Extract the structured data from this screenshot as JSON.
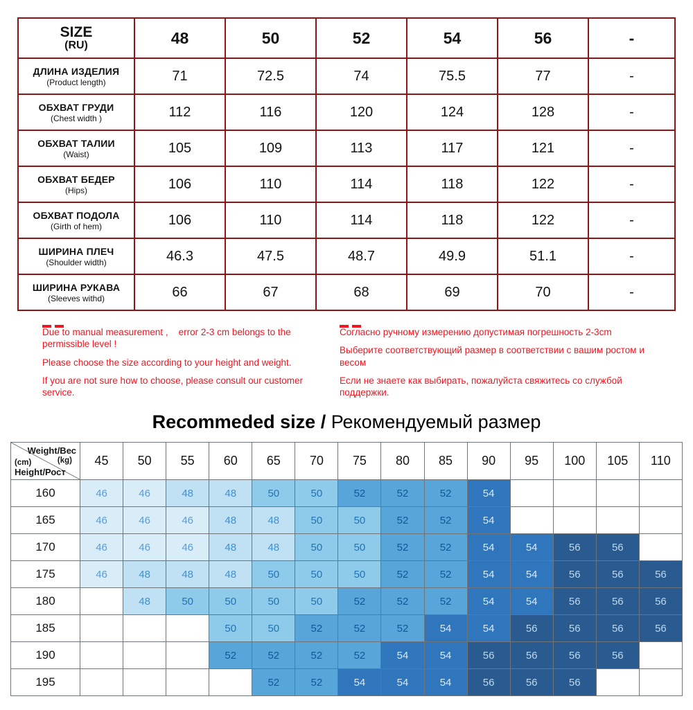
{
  "colors": {
    "table1_border": "#8c1515",
    "note_red": "#f2151f",
    "table2_border": "#6f7479"
  },
  "chart_data": [
    {
      "type": "table",
      "name": "size-measurements",
      "corner_line1": "SIZE",
      "corner_line2": "(RU)",
      "columns": [
        "48",
        "50",
        "52",
        "54",
        "56",
        "-"
      ],
      "rows": [
        {
          "label_ru": "ДЛИНА ИЗДЕЛИЯ",
          "label_en": "(Product length)",
          "values": [
            "71",
            "72.5",
            "74",
            "75.5",
            "77",
            "-"
          ]
        },
        {
          "label_ru": "ОБХВАТ ГРУДИ",
          "label_en": "(Chest width )",
          "values": [
            "112",
            "116",
            "120",
            "124",
            "128",
            "-"
          ]
        },
        {
          "label_ru": "ОБХВАТ ТАЛИИ",
          "label_en": "(Waist)",
          "values": [
            "105",
            "109",
            "113",
            "117",
            "121",
            "-"
          ]
        },
        {
          "label_ru": "ОБХВАТ БЕДЕР",
          "label_en": "(Hips)",
          "values": [
            "106",
            "110",
            "114",
            "118",
            "122",
            "-"
          ]
        },
        {
          "label_ru": "ОБХВАТ ПОДОЛА",
          "label_en": "(Girth of hem)",
          "values": [
            "106",
            "110",
            "114",
            "118",
            "122",
            "-"
          ]
        },
        {
          "label_ru": "ШИРИНА ПЛЕЧ",
          "label_en": "(Shoulder width)",
          "values": [
            "46.3",
            "47.5",
            "48.7",
            "49.9",
            "51.1",
            "-"
          ]
        },
        {
          "label_ru": "ШИРИНА РУКАВА",
          "label_en": "(Sleeves withd)",
          "values": [
            "66",
            "67",
            "68",
            "69",
            "70",
            "-"
          ]
        }
      ]
    },
    {
      "type": "heatmap",
      "name": "recommended-size",
      "title_bold": "Recommeded size /",
      "title_tail": " Рекомендуемый размер",
      "corner": {
        "weight_label": "Weight/Вес",
        "weight_unit": "(kg)",
        "height_unit": "(cm)",
        "height_label": "Height/Рост"
      },
      "weights": [
        "45",
        "50",
        "55",
        "60",
        "65",
        "70",
        "75",
        "80",
        "85",
        "90",
        "95",
        "100",
        "105",
        "110"
      ],
      "rows": [
        {
          "height": "160",
          "cells": [
            "46",
            "46",
            "48",
            "48",
            "50",
            "50",
            "52",
            "52",
            "52",
            "54",
            "",
            "",
            "",
            ""
          ]
        },
        {
          "height": "165",
          "cells": [
            "46",
            "46",
            "46",
            "48",
            "48",
            "50",
            "50",
            "52",
            "52",
            "54",
            "",
            "",
            "",
            ""
          ]
        },
        {
          "height": "170",
          "cells": [
            "46",
            "46",
            "46",
            "48",
            "48",
            "50",
            "50",
            "52",
            "52",
            "54",
            "54",
            "56",
            "56",
            ""
          ]
        },
        {
          "height": "175",
          "cells": [
            "46",
            "48",
            "48",
            "48",
            "50",
            "50",
            "50",
            "52",
            "52",
            "54",
            "54",
            "56",
            "56",
            "56"
          ]
        },
        {
          "height": "180",
          "cells": [
            "",
            "48",
            "50",
            "50",
            "50",
            "50",
            "52",
            "52",
            "52",
            "54",
            "54",
            "56",
            "56",
            "56"
          ]
        },
        {
          "height": "185",
          "cells": [
            "",
            "",
            "",
            "50",
            "50",
            "52",
            "52",
            "52",
            "54",
            "54",
            "56",
            "56",
            "56",
            "56"
          ]
        },
        {
          "height": "190",
          "cells": [
            "",
            "",
            "",
            "52",
            "52",
            "52",
            "52",
            "54",
            "54",
            "56",
            "56",
            "56",
            "56",
            ""
          ]
        },
        {
          "height": "195",
          "cells": [
            "",
            "",
            "",
            "",
            "52",
            "52",
            "54",
            "54",
            "54",
            "56",
            "56",
            "56",
            "",
            ""
          ]
        }
      ],
      "cell_colors": {
        "46": {
          "bg": "#d9edf9",
          "fg": "#5b9bd5"
        },
        "48": {
          "bg": "#c0e1f4",
          "fg": "#4190cc"
        },
        "50": {
          "bg": "#8ecbea",
          "fg": "#2273b5"
        },
        "52": {
          "bg": "#58a5d9",
          "fg": "#11589b"
        },
        "54": {
          "bg": "#3076bc",
          "fg": "#d8e9f8"
        },
        "56": {
          "bg": "#295b90",
          "fg": "#bdd7ed"
        }
      }
    }
  ],
  "notes": {
    "en": [
      "Due to manual measurement ,    error 2-3 cm belongs to the permissible level !",
      "Please choose the size according to your height and weight.",
      "If you are not sure how to choose, please consult our customer service."
    ],
    "ru": [
      "Согласно ручному измерению допустимая погрешность 2-3cm",
      "Выберите соответствующий размер в соответствии с вашим ростом и весом",
      "Если не знаете как выбирать, пожалуйста свяжитесь со службой поддержки."
    ]
  }
}
